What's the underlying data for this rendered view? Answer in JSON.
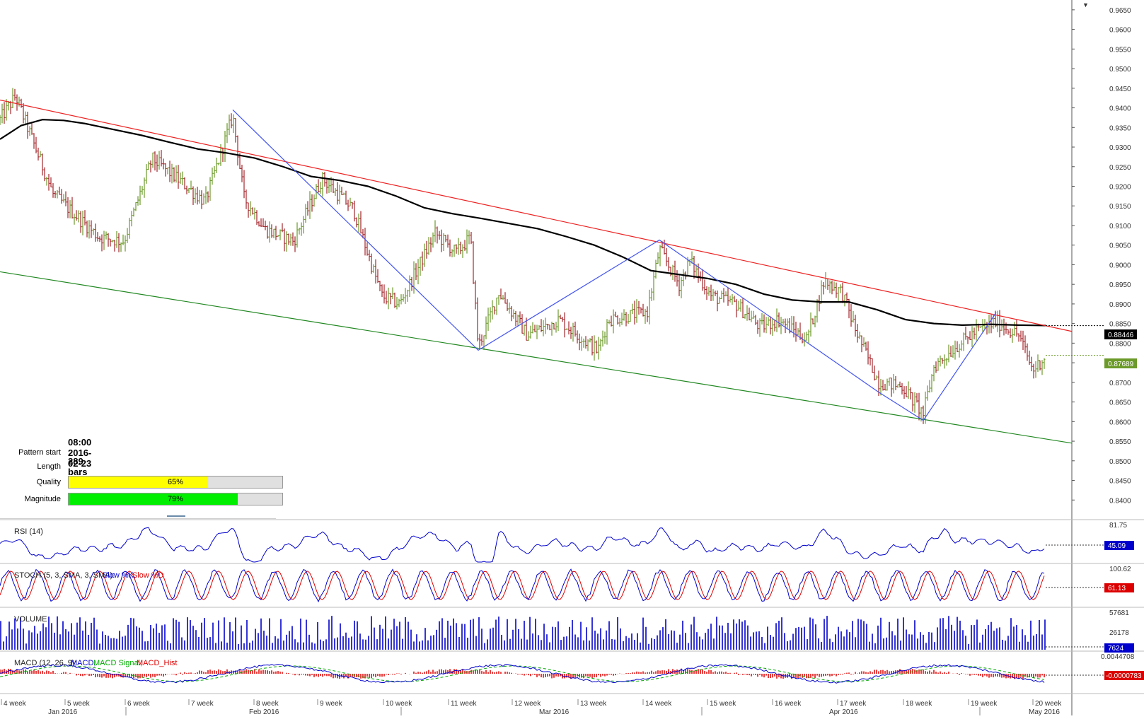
{
  "pattern_info": {
    "start_label": "Pattern start",
    "start_value": "08:00 2016-02-23",
    "length_label": "Length",
    "length_value": "289 bars",
    "quality_label": "Quality",
    "quality_value": "65%",
    "quality_fraction": 0.65,
    "quality_color": "#ffff00",
    "magnitude_label": "Magnitude",
    "magnitude_value": "79%",
    "magnitude_fraction": 0.79,
    "magnitude_color": "#00ee00"
  },
  "price_labels": {
    "ma_value": "0.88446",
    "last_price": "0.87689",
    "ma_color": "#000000",
    "last_color": "#6c9a2a"
  },
  "indicators": {
    "rsi": {
      "label": "RSI (14)",
      "top_level": "81.75",
      "value": "45.09",
      "color": "#0000cc"
    },
    "stoch": {
      "label": "STOCH (5, 3, SMA, 3, SMA):",
      "k_label": "Slow %K,",
      "d_label": "Slow %D",
      "top_level": "100.62",
      "value": "61.13",
      "k_color": "#0000cc",
      "d_color": "#dd0000"
    },
    "volume": {
      "label": "VOLUME",
      "top_level": "57681",
      "mid_level": "26178",
      "value": "7624",
      "color": "#0000cc"
    },
    "macd": {
      "label": "MACD (12, 26, 9):",
      "macd_label": "MACD,",
      "signal_label": "MACD Signal,",
      "hist_label": "MACD_Hist",
      "top_level": "0.0044708",
      "value": "-0.0000783",
      "macd_color": "#0000cc",
      "signal_color": "#00aa00",
      "hist_color": "#dd0000"
    }
  },
  "chart_data": {
    "type": "candlestick",
    "title": "",
    "y_axis": {
      "range": [
        0.835,
        0.9675
      ],
      "ticks": [
        "0.9650",
        "0.9600",
        "0.9550",
        "0.9500",
        "0.9450",
        "0.9400",
        "0.9350",
        "0.9300",
        "0.9250",
        "0.9200",
        "0.9150",
        "0.9100",
        "0.9050",
        "0.9000",
        "0.8950",
        "0.8900",
        "0.8850",
        "0.8800",
        "0.8750",
        "0.8700",
        "0.8650",
        "0.8600",
        "0.8550",
        "0.8500",
        "0.8450",
        "0.8400"
      ]
    },
    "x_axis": {
      "week_labels": [
        "4 week",
        "5 week",
        "6 week",
        "7 week",
        "8 week",
        "9 week",
        "10 week",
        "11 week",
        "12 week",
        "13 week",
        "14 week",
        "15 week",
        "16 week",
        "17 week",
        "18 week",
        "19 week",
        "20 week"
      ],
      "month_labels": [
        "Jan 2016",
        "Feb 2016",
        "Mar 2016",
        "Apr 2016",
        "May 2016"
      ]
    },
    "series": [
      {
        "name": "moving_average",
        "color": "#000000",
        "points": [
          [
            0,
            0.932
          ],
          [
            30,
            0.9355
          ],
          [
            60,
            0.937
          ],
          [
            90,
            0.9368
          ],
          [
            120,
            0.936
          ],
          [
            160,
            0.9345
          ],
          [
            200,
            0.933
          ],
          [
            240,
            0.9312
          ],
          [
            280,
            0.9295
          ],
          [
            320,
            0.9285
          ],
          [
            360,
            0.9272
          ],
          [
            400,
            0.925
          ],
          [
            440,
            0.9225
          ],
          [
            480,
            0.9215
          ],
          [
            520,
            0.92
          ],
          [
            560,
            0.9175
          ],
          [
            600,
            0.9145
          ],
          [
            640,
            0.913
          ],
          [
            680,
            0.9118
          ],
          [
            720,
            0.9105
          ],
          [
            760,
            0.9092
          ],
          [
            800,
            0.9072
          ],
          [
            840,
            0.905
          ],
          [
            880,
            0.902
          ],
          [
            920,
            0.8985
          ],
          [
            960,
            0.8975
          ],
          [
            1000,
            0.8965
          ],
          [
            1040,
            0.895
          ],
          [
            1080,
            0.8925
          ],
          [
            1120,
            0.891
          ],
          [
            1160,
            0.8905
          ],
          [
            1200,
            0.8905
          ],
          [
            1240,
            0.8885
          ],
          [
            1280,
            0.886
          ],
          [
            1320,
            0.885
          ],
          [
            1360,
            0.8846
          ],
          [
            1400,
            0.8848
          ],
          [
            1440,
            0.8846
          ],
          [
            1478,
            0.8845
          ]
        ]
      },
      {
        "name": "upper_trendline",
        "color": "#ee2222",
        "points": [
          [
            0,
            0.942
          ],
          [
            1515,
            0.883
          ]
        ]
      },
      {
        "name": "lower_trendline",
        "color": "#228822",
        "points": [
          [
            0,
            0.8982
          ],
          [
            1515,
            0.8545
          ]
        ]
      },
      {
        "name": "zigzag",
        "color": "#4455ee",
        "points": [
          [
            329,
            0.9395
          ],
          [
            676,
            0.8782
          ],
          [
            932,
            0.9063
          ],
          [
            1242,
            0.8675
          ],
          [
            1305,
            0.8603
          ],
          [
            1408,
            0.8878
          ]
        ]
      }
    ]
  }
}
